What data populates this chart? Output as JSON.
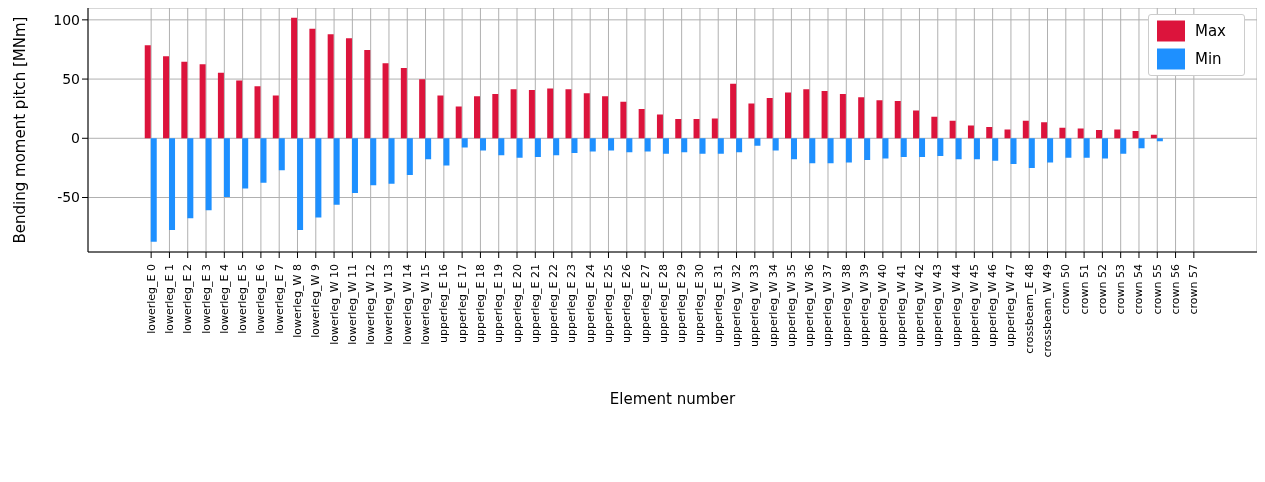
{
  "chart_data": {
    "type": "bar",
    "xlabel": "Element number",
    "ylabel": "Bending moment pitch [MNm]",
    "categories": [
      "lowerleg_E 0",
      "lowerleg_E 1",
      "lowerleg_E 2",
      "lowerleg_E 3",
      "lowerleg_E 4",
      "lowerleg_E 5",
      "lowerleg_E 6",
      "lowerleg_E 7",
      "lowerleg_W 8",
      "lowerleg_W 9",
      "lowerleg_W 10",
      "lowerleg_W 11",
      "lowerleg_W 12",
      "lowerleg_W 13",
      "lowerleg_W 14",
      "lowerleg_W 15",
      "upperleg_E 16",
      "upperleg_E 17",
      "upperleg_E 18",
      "upperleg_E 19",
      "upperleg_E 20",
      "upperleg_E 21",
      "upperleg_E 22",
      "upperleg_E 23",
      "upperleg_E 24",
      "upperleg_E 25",
      "upperleg_E 26",
      "upperleg_E 27",
      "upperleg_E 28",
      "upperleg_E 29",
      "upperleg_E 30",
      "upperleg_E 31",
      "upperleg_W 32",
      "upperleg_W 33",
      "upperleg_W 34",
      "upperleg_W 35",
      "upperleg_W 36",
      "upperleg_W 37",
      "upperleg_W 38",
      "upperleg_W 39",
      "upperleg_W 40",
      "upperleg_W 41",
      "upperleg_W 42",
      "upperleg_W 43",
      "upperleg_W 44",
      "upperleg_W 45",
      "upperleg_W 46",
      "upperleg_W 47",
      "crossbeam_E 48",
      "crossbeam_W 49",
      "crown 50",
      "crown 51",
      "crown 52",
      "crown 53",
      "crown 54",
      "crown 55",
      "crown 56",
      "crown 57"
    ],
    "series": [
      {
        "name": "Max",
        "color": "#dc143c",
        "values": [
          78.5,
          69.2,
          64.6,
          62.6,
          55.3,
          48.7,
          44.0,
          36.1,
          101.8,
          92.5,
          87.8,
          84.5,
          74.6,
          63.3,
          59.3,
          49.8,
          36.1,
          26.8,
          35.4,
          37.4,
          41.4,
          40.7,
          42.0,
          41.4,
          38.1,
          35.4,
          30.8,
          24.8,
          20.1,
          16.2,
          16.2,
          16.8,
          46.0,
          29.4,
          34.1,
          38.7,
          41.4,
          40.0,
          37.4,
          34.7,
          32.1,
          31.4,
          23.5,
          18.1,
          14.8,
          10.8,
          9.5,
          7.5,
          14.8,
          13.5,
          8.8,
          8.2,
          6.9,
          7.5,
          6.2,
          2.9,
          0,
          0
        ]
      },
      {
        "name": "Min",
        "color": "#1e90ff",
        "values": [
          -87.4,
          -77.4,
          -67.5,
          -60.8,
          -49.6,
          -42.3,
          -37.6,
          -27.0,
          -77.4,
          -66.8,
          -56.2,
          -46.2,
          -39.6,
          -38.3,
          -31.0,
          -17.7,
          -23.0,
          -7.7,
          -10.4,
          -14.4,
          -16.4,
          -15.7,
          -14.4,
          -12.4,
          -11.1,
          -10.4,
          -11.7,
          -11.1,
          -13.1,
          -11.7,
          -13.1,
          -13.1,
          -11.7,
          -6.4,
          -10.4,
          -17.7,
          -21.0,
          -21.0,
          -20.4,
          -18.4,
          -17.0,
          -15.7,
          -15.7,
          -15.0,
          -17.7,
          -17.7,
          -19.0,
          -21.7,
          -25.0,
          -20.4,
          -16.4,
          -16.4,
          -17.0,
          -13.1,
          -8.4,
          -2.4,
          0,
          0
        ]
      }
    ],
    "ylim": [
      -96,
      110
    ],
    "yticks": [
      -50,
      0,
      50,
      100
    ],
    "grid": true,
    "legend": "top right"
  }
}
